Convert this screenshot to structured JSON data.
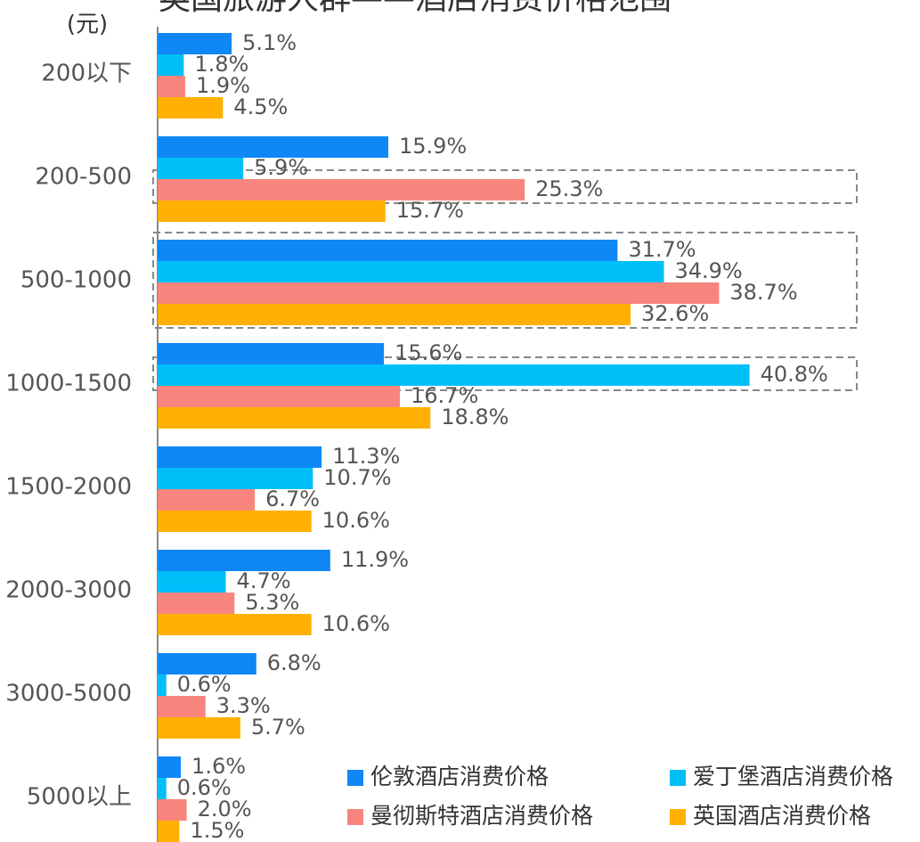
{
  "chart_data": {
    "type": "bar",
    "orientation": "horizontal",
    "title": "英国旅游人群——酒店消费价格范围",
    "unit_label": "(元)",
    "categories": [
      "200以下",
      "200-500",
      "500-1000",
      "1000-1500",
      "1500-2000",
      "2000-3000",
      "3000-5000",
      "5000以上"
    ],
    "xlim": [
      0,
      45
    ],
    "legend": "bottom-right",
    "series": [
      {
        "name": "伦敦酒店消费价格",
        "color": "#0f87f5",
        "values": [
          5.1,
          15.9,
          31.7,
          15.6,
          11.3,
          11.9,
          6.8,
          1.6
        ],
        "value_labels": [
          "5.1%",
          "15.9%",
          "31.7%",
          "15.6%",
          "11.3%",
          "11.9%",
          "6.8%",
          "1.6%"
        ]
      },
      {
        "name": "爱丁堡酒店消费价格",
        "color": "#00bff8",
        "values": [
          1.8,
          5.9,
          34.9,
          40.8,
          10.7,
          4.7,
          0.6,
          0.6
        ],
        "value_labels": [
          "1.8%",
          "5.9%",
          "34.9%",
          "40.8%",
          "10.7%",
          "4.7%",
          "0.6%",
          "0.6%"
        ]
      },
      {
        "name": "曼彻斯特酒店消费价格",
        "color": "#f8857d",
        "values": [
          1.9,
          25.3,
          38.7,
          16.7,
          6.7,
          5.3,
          3.3,
          2.0
        ],
        "value_labels": [
          "1.9%",
          "25.3%",
          "38.7%",
          "16.7%",
          "6.7%",
          "5.3%",
          "3.3%",
          "2.0%"
        ]
      },
      {
        "name": "英国酒店消费价格",
        "color": "#ffb000",
        "values": [
          4.5,
          15.7,
          32.6,
          18.8,
          10.6,
          10.6,
          5.7,
          1.5
        ],
        "value_labels": [
          "4.5%",
          "15.7%",
          "32.6%",
          "18.8%",
          "10.6%",
          "10.6%",
          "5.7%",
          "1.5%"
        ]
      }
    ]
  }
}
